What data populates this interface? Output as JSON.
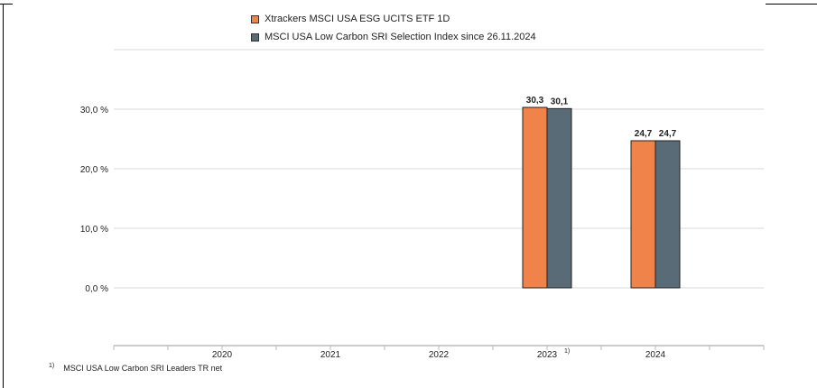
{
  "colors": {
    "series1": "#f0834a",
    "series2": "#5a6b78",
    "grid": "#d8d8d8",
    "axis": "#cccccc"
  },
  "footnote": {
    "marker": "1)",
    "text": "MSCI USA Low Carbon SRI Leaders TR net"
  },
  "chart_data": {
    "type": "bar",
    "categories": [
      "2020",
      "2021",
      "2022",
      "2023",
      "2024"
    ],
    "category_notes": {
      "2023": "1)"
    },
    "series": [
      {
        "name": "Xtrackers MSCI USA ESG UCITS ETF 1D",
        "values": [
          null,
          null,
          null,
          30.3,
          24.7
        ],
        "labels": [
          "",
          "",
          "",
          "30,3",
          "24,7"
        ]
      },
      {
        "name": "MSCI USA Low Carbon SRI Selection Index since 26.11.2024",
        "values": [
          null,
          null,
          null,
          30.1,
          24.7
        ],
        "labels": [
          "",
          "",
          "",
          "30,1",
          "24,7"
        ]
      }
    ],
    "yticks": [
      0,
      10,
      20,
      30
    ],
    "ytick_labels": [
      "0,0 %",
      "10,0 %",
      "20,0 %",
      "30,0 %"
    ],
    "ylim": [
      -10,
      40
    ],
    "grid": true,
    "legend_position": "top"
  }
}
